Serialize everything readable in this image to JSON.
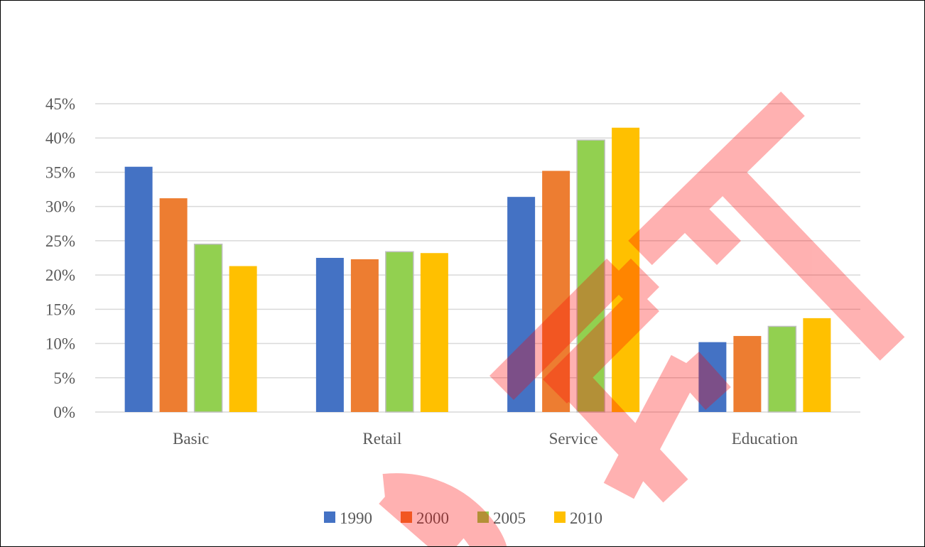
{
  "chart_data": {
    "type": "bar",
    "categories": [
      "Basic",
      "Retail",
      "Service",
      "Education"
    ],
    "series": [
      {
        "name": "1990",
        "color": "#4472C4",
        "values": [
          35.8,
          22.5,
          31.4,
          10.2
        ]
      },
      {
        "name": "2000",
        "color": "#ED7D31",
        "values": [
          31.2,
          22.3,
          35.2,
          11.1
        ]
      },
      {
        "name": "2005",
        "color": "#92D050",
        "values": [
          24.5,
          23.4,
          39.7,
          12.5
        ]
      },
      {
        "name": "2010",
        "color": "#FFC000",
        "values": [
          21.3,
          23.2,
          41.5,
          13.7
        ]
      }
    ],
    "yticks": [
      "0%",
      "5%",
      "10%",
      "15%",
      "20%",
      "25%",
      "30%",
      "35%",
      "40%",
      "45%"
    ],
    "ylim": [
      0,
      45
    ],
    "unit": "%",
    "grid": true,
    "legend_position": "bottom",
    "title": "",
    "xlabel": "",
    "ylabel": ""
  },
  "watermark": {
    "text": "DRAFT",
    "color": "#FF0000"
  }
}
